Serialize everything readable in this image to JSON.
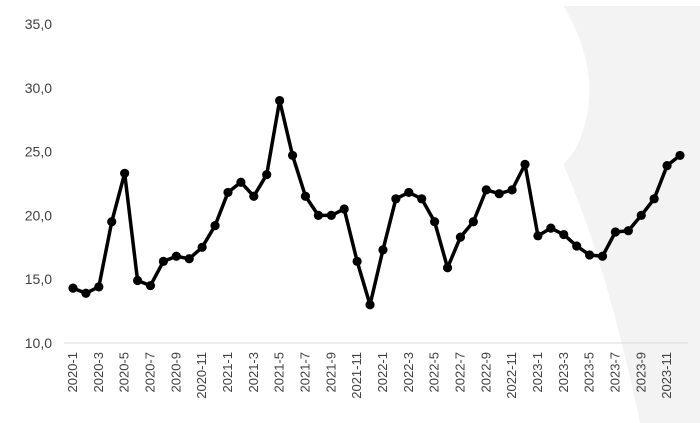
{
  "chart_data": {
    "type": "line",
    "title": "",
    "xlabel": "",
    "ylabel": "",
    "ylim": [
      10,
      35
    ],
    "y_ticks": [
      "10,0",
      "15,0",
      "20,0",
      "25,0",
      "30,0",
      "35,0"
    ],
    "grid": false,
    "legend": "none",
    "colors": {
      "line": "#000000",
      "marker": "#000000",
      "axis": "#d9d9d9",
      "background_shape": "#e9e9e9"
    },
    "x": [
      "2020-1",
      "2020-2",
      "2020-3",
      "2020-4",
      "2020-5",
      "2020-6",
      "2020-7",
      "2020-8",
      "2020-9",
      "2020-10",
      "2020-11",
      "2020-12",
      "2021-1",
      "2021-2",
      "2021-3",
      "2021-4",
      "2021-5",
      "2021-6",
      "2021-7",
      "2021-8",
      "2021-9",
      "2021-10",
      "2021-11",
      "2021-12",
      "2022-1",
      "2022-2",
      "2022-3",
      "2022-4",
      "2022-5",
      "2022-6",
      "2022-7",
      "2022-8",
      "2022-9",
      "2022-10",
      "2022-11",
      "2022-12",
      "2023-1",
      "2023-2",
      "2023-3",
      "2023-4",
      "2023-5",
      "2023-6",
      "2023-7",
      "2023-8",
      "2023-9",
      "2023-10",
      "2023-11",
      "2023-12"
    ],
    "x_tick_labels": [
      "2020-1",
      "2020-3",
      "2020-5",
      "2020-7",
      "2020-9",
      "2020-11",
      "2021-1",
      "2021-3",
      "2021-5",
      "2021-7",
      "2021-9",
      "2021-11",
      "2022-1",
      "2022-3",
      "2022-5",
      "2022-7",
      "2022-9",
      "2022-11",
      "2023-1",
      "2023-3",
      "2023-5",
      "2023-7",
      "2023-9",
      "2023-11"
    ],
    "series": [
      {
        "values": [
          14.3,
          13.9,
          14.4,
          19.5,
          23.3,
          14.9,
          14.5,
          16.4,
          16.8,
          16.6,
          17.5,
          19.2,
          21.8,
          22.6,
          21.5,
          23.2,
          29.0,
          24.7,
          21.5,
          20.0,
          20.0,
          20.5,
          16.4,
          13.0,
          17.3,
          21.3,
          21.8,
          21.3,
          19.5,
          15.9,
          18.3,
          19.5,
          22.0,
          21.7,
          22.0,
          24.0,
          18.4,
          19.0,
          18.5,
          17.6,
          16.9,
          16.8,
          18.7,
          18.8,
          20.0,
          21.3,
          23.9,
          24.7
        ]
      }
    ]
  }
}
